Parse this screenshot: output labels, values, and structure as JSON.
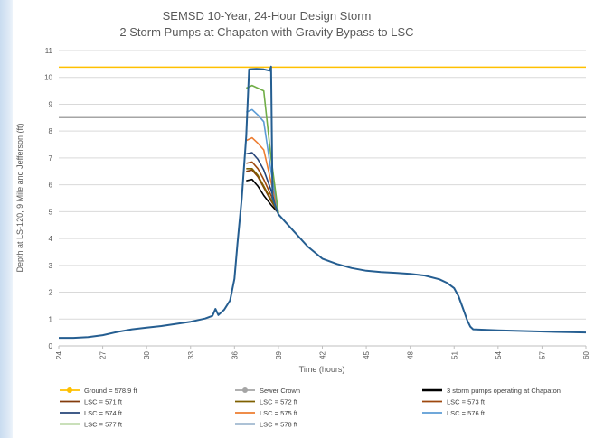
{
  "chart_data": {
    "type": "line",
    "title": "SEMSD 10-Year, 24-Hour Design Storm",
    "subtitle": "2 Storm Pumps at Chapaton with Gravity Bypass to LSC",
    "xlabel": "Time (hours)",
    "ylabel": "Depth at LS-120, 9 Mile and Jefferson (ft)",
    "xlim": [
      24,
      60
    ],
    "ylim": [
      0,
      11
    ],
    "xticks": [
      24,
      27,
      30,
      33,
      36,
      39,
      42,
      45,
      48,
      51,
      54,
      57,
      60
    ],
    "yticks": [
      0,
      1,
      2,
      3,
      4,
      5,
      6,
      7,
      8,
      9,
      10,
      11
    ],
    "grid": "horizontal",
    "legend_position": "bottom",
    "series": [
      {
        "name": "Ground = 578.9 ft",
        "color": "#ffc000",
        "marker": "circle",
        "x": [
          24,
          60
        ],
        "y": [
          10.38,
          10.38
        ]
      },
      {
        "name": "Sewer Crown",
        "color": "#a5a5a5",
        "marker": "circle",
        "x": [
          24,
          60
        ],
        "y": [
          8.5,
          8.5
        ]
      },
      {
        "name": "3 storm pumps operating at Chapaton",
        "color": "#000000",
        "marker": "none",
        "x": [
          36.8,
          37.2,
          37.6,
          38.0,
          38.5,
          39.0
        ],
        "y": [
          6.15,
          6.2,
          5.95,
          5.6,
          5.25,
          4.95
        ]
      },
      {
        "name": "LSC = 571 ft",
        "color": "#843c0c",
        "marker": "none",
        "x": [
          36.8,
          37.2,
          37.6,
          38.0,
          38.5,
          39.0
        ],
        "y": [
          6.5,
          6.55,
          6.3,
          5.9,
          5.4,
          4.95
        ]
      },
      {
        "name": "LSC = 572 ft",
        "color": "#7f6000",
        "marker": "none",
        "x": [
          36.8,
          37.2,
          37.6,
          38.0,
          38.5,
          39.0
        ],
        "y": [
          6.6,
          6.6,
          6.35,
          5.95,
          5.45,
          4.95
        ]
      },
      {
        "name": "LSC = 573 ft",
        "color": "#9e480e",
        "marker": "none",
        "x": [
          36.8,
          37.2,
          37.6,
          38.0,
          38.5,
          39.0
        ],
        "y": [
          6.8,
          6.85,
          6.6,
          6.2,
          5.6,
          4.95
        ]
      },
      {
        "name": "LSC = 574 ft",
        "color": "#264478",
        "marker": "none",
        "x": [
          36.8,
          37.2,
          37.6,
          38.0,
          38.5,
          39.0
        ],
        "y": [
          7.15,
          7.2,
          6.95,
          6.55,
          5.8,
          4.95
        ]
      },
      {
        "name": "LSC = 575 ft",
        "color": "#ed7d31",
        "marker": "none",
        "x": [
          36.8,
          37.2,
          37.6,
          38.0,
          38.5,
          39.0
        ],
        "y": [
          7.65,
          7.75,
          7.55,
          7.3,
          6.1,
          4.95
        ]
      },
      {
        "name": "LSC = 576 ft",
        "color": "#5b9bd5",
        "marker": "none",
        "x": [
          36.8,
          37.2,
          37.6,
          38.0,
          38.5,
          39.0
        ],
        "y": [
          8.7,
          8.8,
          8.6,
          8.35,
          6.5,
          4.95
        ]
      },
      {
        "name": "LSC = 577 ft",
        "color": "#70ad47",
        "marker": "none",
        "x": [
          36.8,
          37.2,
          37.6,
          38.0,
          38.5,
          39.0
        ],
        "y": [
          9.6,
          9.7,
          9.6,
          9.5,
          7.0,
          4.95
        ]
      },
      {
        "name": "LSC = 578 ft",
        "color": "#255e91",
        "marker": "none",
        "x": [
          24,
          25,
          26,
          27,
          28,
          29,
          30,
          31,
          32,
          33,
          34,
          34.5,
          34.7,
          34.9,
          35.3,
          35.7,
          36.0,
          36.2,
          36.5,
          36.8,
          37.0,
          37.5,
          38.0,
          38.4,
          38.5,
          38.6,
          39,
          40,
          41,
          42,
          43,
          44,
          45,
          46,
          47,
          48,
          49,
          50,
          50.5,
          51,
          51.3,
          51.6,
          51.9,
          52.1,
          52.3,
          54,
          56,
          58,
          60
        ],
        "y": [
          0.3,
          0.3,
          0.33,
          0.4,
          0.52,
          0.62,
          0.68,
          0.74,
          0.82,
          0.9,
          1.02,
          1.12,
          1.38,
          1.15,
          1.35,
          1.7,
          2.5,
          3.8,
          5.5,
          7.8,
          10.3,
          10.32,
          10.3,
          10.25,
          10.4,
          5.5,
          4.9,
          4.3,
          3.7,
          3.25,
          3.05,
          2.9,
          2.8,
          2.75,
          2.72,
          2.68,
          2.62,
          2.48,
          2.35,
          2.15,
          1.85,
          1.4,
          0.95,
          0.72,
          0.62,
          0.58,
          0.55,
          0.52,
          0.5
        ]
      }
    ]
  }
}
